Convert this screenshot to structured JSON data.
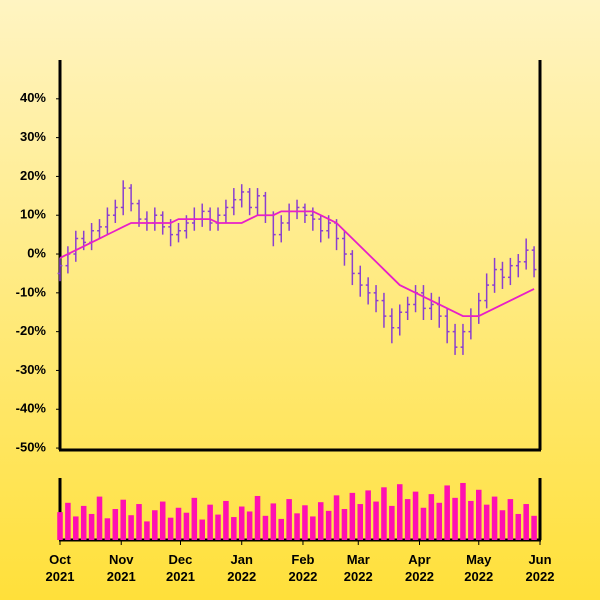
{
  "chart_data": {
    "type": "ohlc",
    "x": [
      0,
      4,
      8,
      12,
      16,
      20,
      24,
      28,
      32,
      36,
      40,
      44,
      48,
      52,
      56,
      60,
      64,
      68,
      72,
      76,
      80,
      84,
      88,
      92,
      96,
      100,
      104,
      108,
      112,
      116,
      120,
      124,
      128,
      132,
      136,
      140,
      144,
      148,
      152,
      156,
      160,
      164,
      168,
      172,
      176,
      180,
      184,
      188,
      192,
      196,
      200,
      204,
      208,
      212,
      216,
      220,
      224,
      228,
      232,
      236,
      240
    ],
    "open": [
      -5,
      -3,
      0,
      4,
      3,
      6,
      7,
      10,
      12,
      17,
      13,
      9,
      8,
      10,
      7,
      5,
      6,
      8,
      9,
      11,
      8,
      10,
      12,
      14,
      16,
      12,
      15,
      10,
      5,
      8,
      11,
      12,
      10,
      9,
      6,
      8,
      4,
      0,
      -5,
      -8,
      -10,
      -12,
      -16,
      -19,
      -15,
      -13,
      -10,
      -14,
      -13,
      -16,
      -20,
      -24,
      -20,
      -16,
      -12,
      -8,
      -4,
      -6,
      -3,
      -2,
      1
    ],
    "high": [
      -1,
      2,
      6,
      6,
      8,
      9,
      12,
      14,
      19,
      18,
      14,
      11,
      12,
      11,
      9,
      8,
      10,
      12,
      13,
      12,
      12,
      14,
      17,
      18,
      17,
      17,
      16,
      11,
      10,
      13,
      14,
      13,
      12,
      10,
      10,
      9,
      6,
      1,
      -3,
      -6,
      -8,
      -10,
      -14,
      -13,
      -11,
      -8,
      -8,
      -10,
      -11,
      -14,
      -18,
      -18,
      -14,
      -10,
      -5,
      -1,
      -2,
      -1,
      0,
      4,
      2
    ],
    "low": [
      -7,
      -5,
      -2,
      1,
      1,
      4,
      5,
      8,
      10,
      11,
      7,
      6,
      6,
      5,
      2,
      3,
      4,
      6,
      7,
      6,
      6,
      8,
      10,
      12,
      10,
      10,
      8,
      2,
      3,
      6,
      9,
      8,
      6,
      3,
      4,
      1,
      -3,
      -8,
      -11,
      -13,
      -15,
      -19,
      -23,
      -21,
      -17,
      -15,
      -17,
      -17,
      -19,
      -23,
      -26,
      -26,
      -22,
      -18,
      -14,
      -10,
      -9,
      -8,
      -6,
      -4,
      -6
    ],
    "close": [
      -3,
      0,
      4,
      3,
      6,
      7,
      10,
      12,
      17,
      13,
      9,
      8,
      10,
      7,
      5,
      6,
      8,
      9,
      11,
      8,
      10,
      12,
      14,
      16,
      12,
      15,
      10,
      5,
      8,
      11,
      12,
      10,
      9,
      6,
      8,
      4,
      0,
      -5,
      -8,
      -10,
      -12,
      -16,
      -19,
      -15,
      -13,
      -10,
      -14,
      -13,
      -16,
      -20,
      -24,
      -20,
      -16,
      -12,
      -8,
      -4,
      -6,
      -3,
      -2,
      1,
      -4
    ],
    "ma": [
      -1,
      0,
      1,
      2,
      3,
      4,
      5,
      6,
      7,
      8,
      8,
      8,
      8,
      8,
      8,
      9,
      9,
      9,
      9,
      9,
      8,
      8,
      8,
      8,
      9,
      10,
      10,
      10,
      11,
      11,
      11,
      11,
      11,
      10,
      9,
      8,
      6,
      4,
      2,
      0,
      -2,
      -4,
      -6,
      -8,
      -9,
      -10,
      -11,
      -12,
      -13,
      -14,
      -15,
      -16,
      -16,
      -16,
      -15,
      -14,
      -13,
      -12,
      -11,
      -10,
      -9
    ],
    "volume": [
      45,
      60,
      38,
      55,
      42,
      70,
      35,
      50,
      65,
      40,
      58,
      30,
      48,
      62,
      36,
      52,
      44,
      68,
      33,
      57,
      41,
      63,
      37,
      54,
      46,
      71,
      39,
      59,
      34,
      66,
      43,
      56,
      38,
      61,
      47,
      72,
      50,
      76,
      58,
      80,
      62,
      85,
      55,
      90,
      66,
      78,
      52,
      74,
      60,
      88,
      68,
      92,
      63,
      81,
      57,
      70,
      48,
      66,
      42,
      58,
      39
    ],
    "color": "#8a3fd0",
    "ma_color": "#e81fc8",
    "volume_color": "#ff10b0",
    "xlim": [
      0,
      243
    ],
    "xticks": [
      {
        "value": 0,
        "label": "Oct 2021"
      },
      {
        "value": 31,
        "label": "Nov 2021"
      },
      {
        "value": 61,
        "label": "Dec 2021"
      },
      {
        "value": 92,
        "label": "Jan 2022"
      },
      {
        "value": 123,
        "label": "Feb 2022"
      },
      {
        "value": 151,
        "label": "Mar 2022"
      },
      {
        "value": 182,
        "label": "Apr 2022"
      },
      {
        "value": 212,
        "label": "May 2022"
      },
      {
        "value": 243,
        "label": "Jun 2022"
      }
    ],
    "ylim": [
      -50.5,
      50
    ],
    "yticks": [
      {
        "value": 40,
        "label": "40%"
      },
      {
        "value": 30,
        "label": "30%"
      },
      {
        "value": 20,
        "label": "20%"
      },
      {
        "value": 10,
        "label": "10%"
      },
      {
        "value": 0,
        "label": "0%"
      },
      {
        "value": -10,
        "label": "-10%"
      },
      {
        "value": -20,
        "label": "-20%"
      },
      {
        "value": -30,
        "label": "-30%"
      },
      {
        "value": -40,
        "label": "-40%"
      },
      {
        "value": -50,
        "label": "-50%"
      }
    ],
    "volume_ylim": [
      0,
      100
    ]
  }
}
